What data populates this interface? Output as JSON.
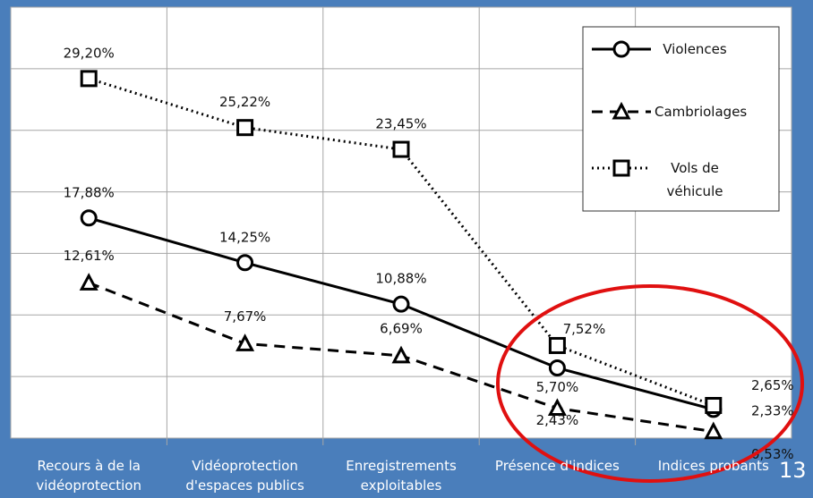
{
  "chart_data": {
    "type": "line",
    "categories": [
      "Recours à de la vidéoprotection",
      "Vidéoprotection d'espaces publics",
      "Enregistrements exploitables",
      "Présence d'indices",
      "Indices probants"
    ],
    "series": [
      {
        "name": "Violences",
        "color": "#000000",
        "line_style": "solid",
        "marker": "circle",
        "values": [
          17.88,
          14.25,
          10.88,
          5.7,
          2.33
        ],
        "value_labels": [
          "17,88%",
          "14,25%",
          "10,88%",
          "5,70%",
          "2,33%"
        ]
      },
      {
        "name": "Cambriolages",
        "color": "#000000",
        "line_style": "dashed",
        "marker": "triangle",
        "values": [
          12.61,
          7.67,
          6.69,
          2.43,
          0.53
        ],
        "value_labels": [
          "12,61%",
          "7,67%",
          "6,69%",
          "2,43%",
          "0,53%"
        ]
      },
      {
        "name": "Vols de véhicule",
        "color": "#000000",
        "line_style": "dotted",
        "marker": "square",
        "values": [
          29.2,
          25.22,
          23.45,
          7.52,
          2.65
        ],
        "value_labels": [
          "29,20%",
          "25,22%",
          "23,45%",
          "7,52%",
          "2,65%"
        ]
      }
    ],
    "ylim": [
      0,
      35
    ],
    "yticks": [
      0,
      5,
      10,
      15,
      20,
      25,
      30,
      35
    ],
    "grid": true,
    "legend": "upper right"
  },
  "slide_number": "13"
}
